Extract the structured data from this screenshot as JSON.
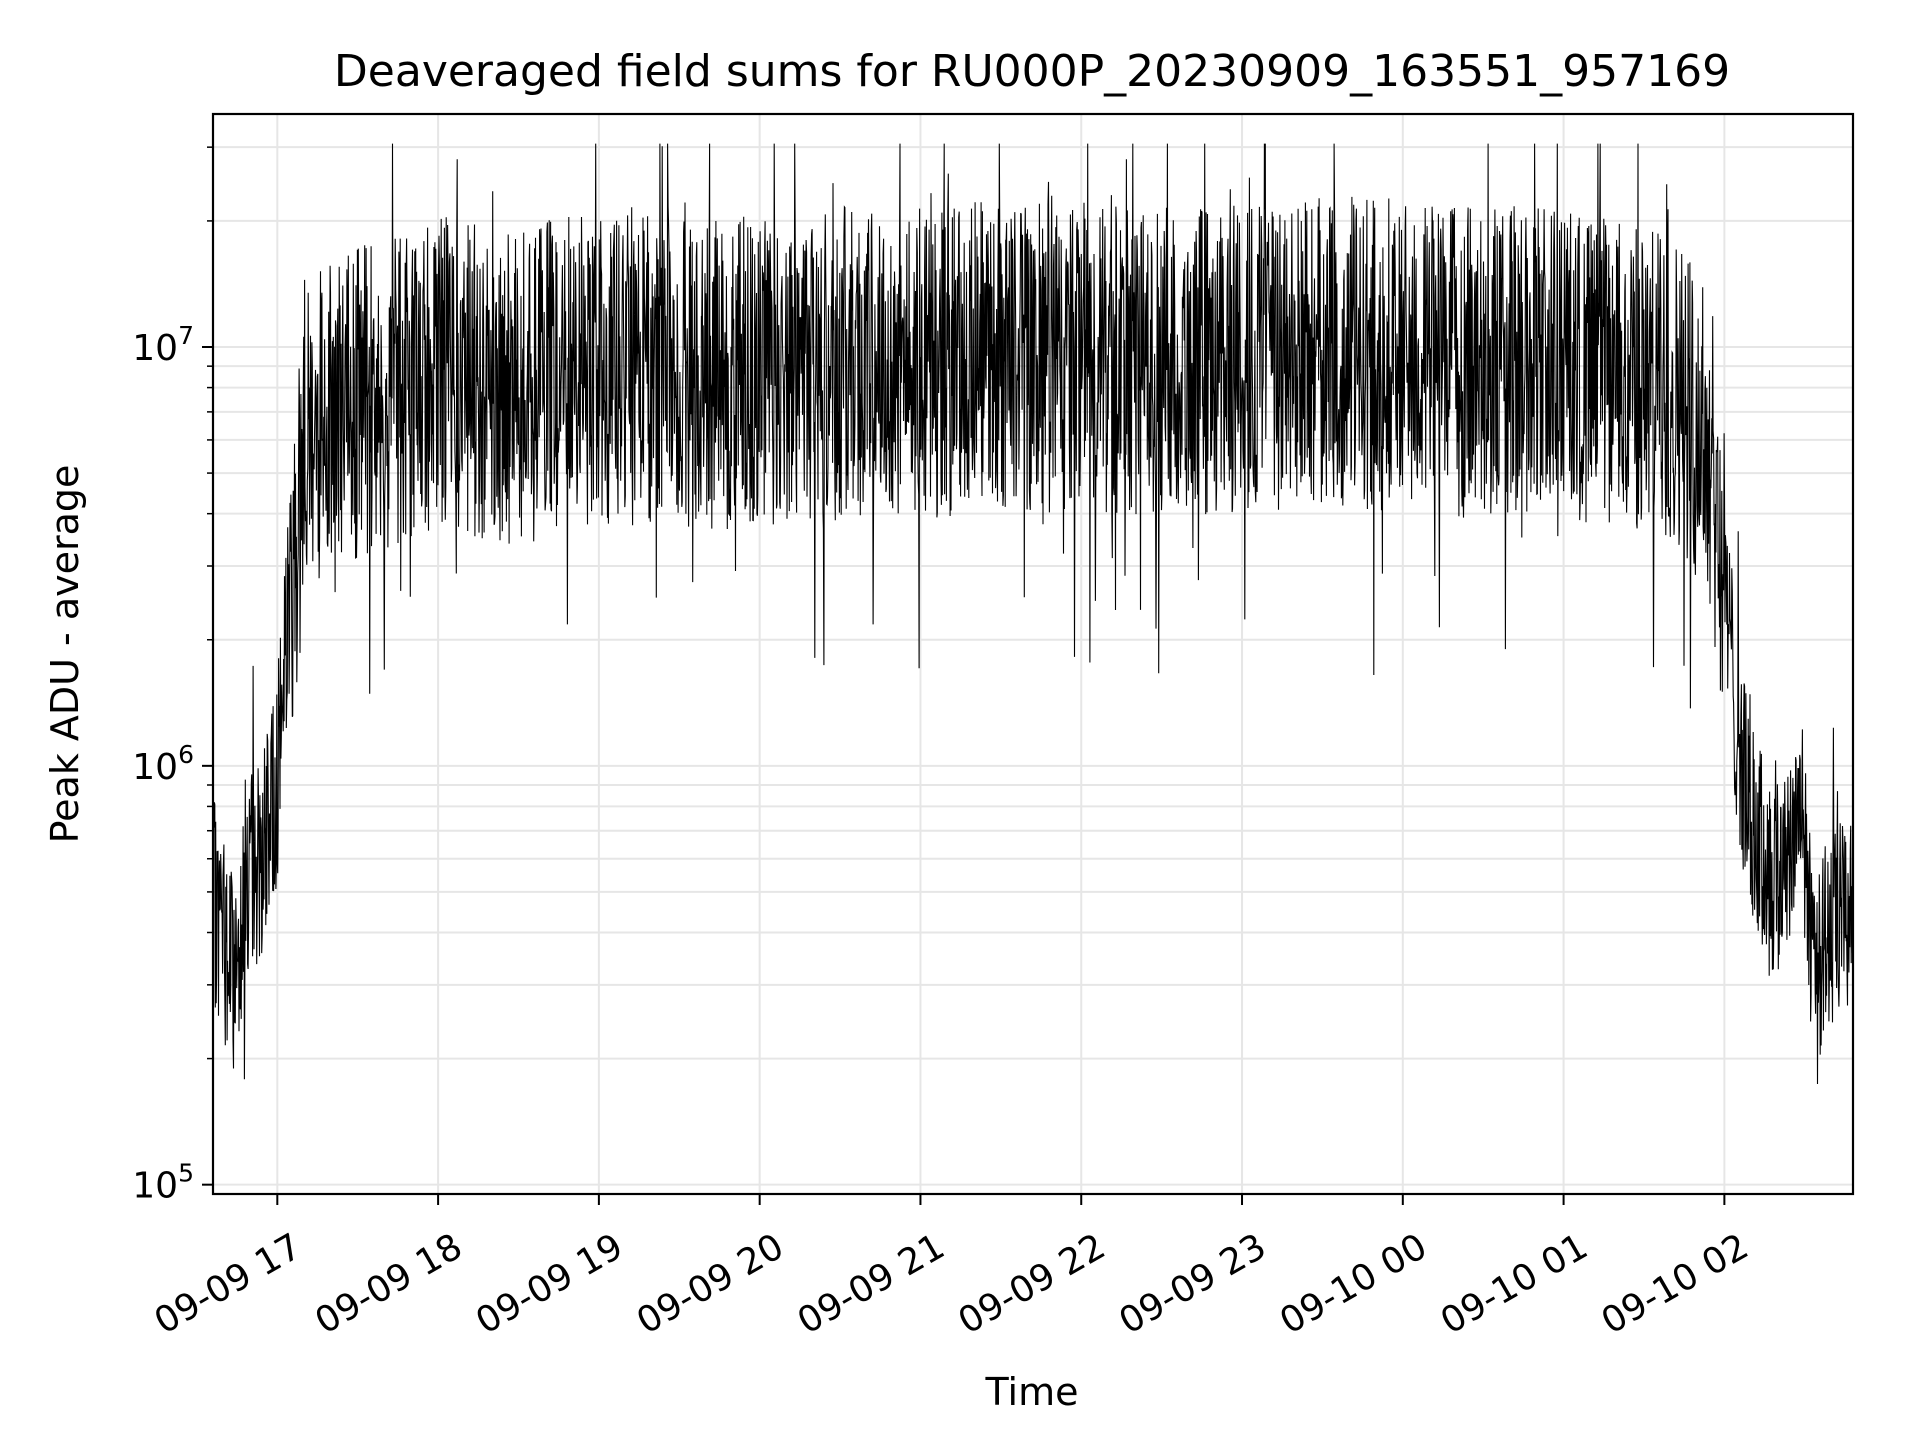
{
  "chart_data": {
    "type": "line",
    "title": "Deaveraged field sums for RU000P_20230909_163551_957169",
    "xlabel": "Time",
    "ylabel": "Peak ADU - average",
    "yscale": "log",
    "grid": true,
    "legend": "none",
    "line_color": "#000000",
    "grid_color": "#e6e6e6",
    "xlim": [
      "2023-09-09 16:36",
      "2023-09-10 02:48"
    ],
    "ylim": [
      95000,
      36000000
    ],
    "x_ticks": [
      {
        "time": "2023-09-09 17:00",
        "label": "09-09 17"
      },
      {
        "time": "2023-09-09 18:00",
        "label": "09-09 18"
      },
      {
        "time": "2023-09-09 19:00",
        "label": "09-09 19"
      },
      {
        "time": "2023-09-09 20:00",
        "label": "09-09 20"
      },
      {
        "time": "2023-09-09 21:00",
        "label": "09-09 21"
      },
      {
        "time": "2023-09-09 22:00",
        "label": "09-09 22"
      },
      {
        "time": "2023-09-09 23:00",
        "label": "09-09 23"
      },
      {
        "time": "2023-09-10 00:00",
        "label": "09-10 00"
      },
      {
        "time": "2023-09-10 01:00",
        "label": "09-10 01"
      },
      {
        "time": "2023-09-10 02:00",
        "label": "09-10 02"
      }
    ],
    "y_ticks": [
      {
        "value": 100000,
        "base": "10",
        "exp": "5"
      },
      {
        "value": 1000000,
        "base": "10",
        "exp": "6"
      },
      {
        "value": 10000000,
        "base": "10",
        "exp": "7"
      }
    ],
    "series": [
      {
        "x": [
          "2023-09-09 16:36",
          "2023-09-09 16:40",
          "2023-09-09 16:44",
          "2023-09-09 16:48",
          "2023-09-09 16:52",
          "2023-09-09 16:56",
          "2023-09-09 17:00",
          "2023-09-09 17:04",
          "2023-09-09 17:08",
          "2023-09-09 17:12",
          "2023-09-09 17:16",
          "2023-09-09 17:20",
          "2023-09-09 17:25",
          "2023-09-09 17:30",
          "2023-09-09 17:40",
          "2023-09-09 17:50",
          "2023-09-09 18:00",
          "2023-09-09 18:15",
          "2023-09-09 18:30",
          "2023-09-09 18:45",
          "2023-09-09 19:00",
          "2023-09-09 19:30",
          "2023-09-09 20:00",
          "2023-09-09 20:30",
          "2023-09-09 21:00",
          "2023-09-09 21:30",
          "2023-09-09 22:00",
          "2023-09-09 22:30",
          "2023-09-09 23:00",
          "2023-09-09 23:30",
          "2023-09-10 00:00",
          "2023-09-10 00:30",
          "2023-09-10 01:00",
          "2023-09-10 01:15",
          "2023-09-10 01:30",
          "2023-09-10 01:45",
          "2023-09-10 01:55",
          "2023-09-10 02:00",
          "2023-09-10 02:04",
          "2023-09-10 02:08",
          "2023-09-10 02:12",
          "2023-09-10 02:16",
          "2023-09-10 02:20",
          "2023-09-10 02:24",
          "2023-09-10 02:28",
          "2023-09-10 02:32",
          "2023-09-10 02:36",
          "2023-09-10 02:40",
          "2023-09-10 02:44",
          "2023-09-10 02:48"
        ],
        "y": [
          500000,
          420000,
          330000,
          560000,
          620000,
          700000,
          1000000,
          2500000,
          4500000,
          7000000,
          8000000,
          8000000,
          7500000,
          8000000,
          8500000,
          9000000,
          9500000,
          9000000,
          8500000,
          9500000,
          9500000,
          9500000,
          9500000,
          10000000,
          10000000,
          10500000,
          10000000,
          10000000,
          10000000,
          10500000,
          10500000,
          10000000,
          10000000,
          9500000,
          9000000,
          8500000,
          6000000,
          3000000,
          1500000,
          900000,
          700000,
          600000,
          550000,
          700000,
          900000,
          450000,
          380000,
          420000,
          450000,
          500000
        ]
      }
    ]
  }
}
